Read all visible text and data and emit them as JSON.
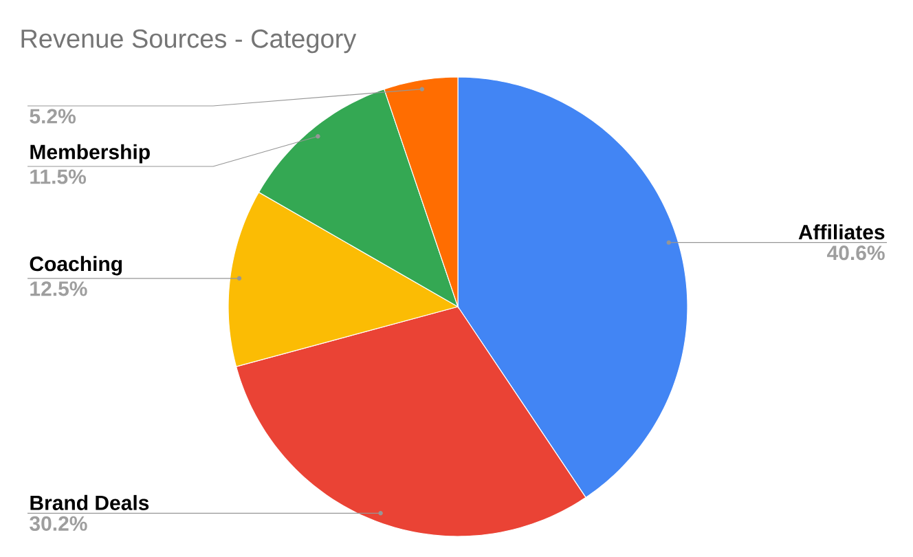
{
  "chart_data": {
    "type": "pie",
    "title": "Revenue Sources - Category",
    "categories": [
      "Affiliates",
      "Brand Deals",
      "Coaching",
      "Membership",
      null
    ],
    "values": [
      40.6,
      30.2,
      12.5,
      11.5,
      5.2
    ],
    "value_labels": [
      "40.6%",
      "30.2%",
      "12.5%",
      "11.5%",
      "5.2%"
    ],
    "colors": [
      "#4285f4",
      "#ea4335",
      "#fbbc04",
      "#34a853",
      "#ff6d01"
    ]
  }
}
